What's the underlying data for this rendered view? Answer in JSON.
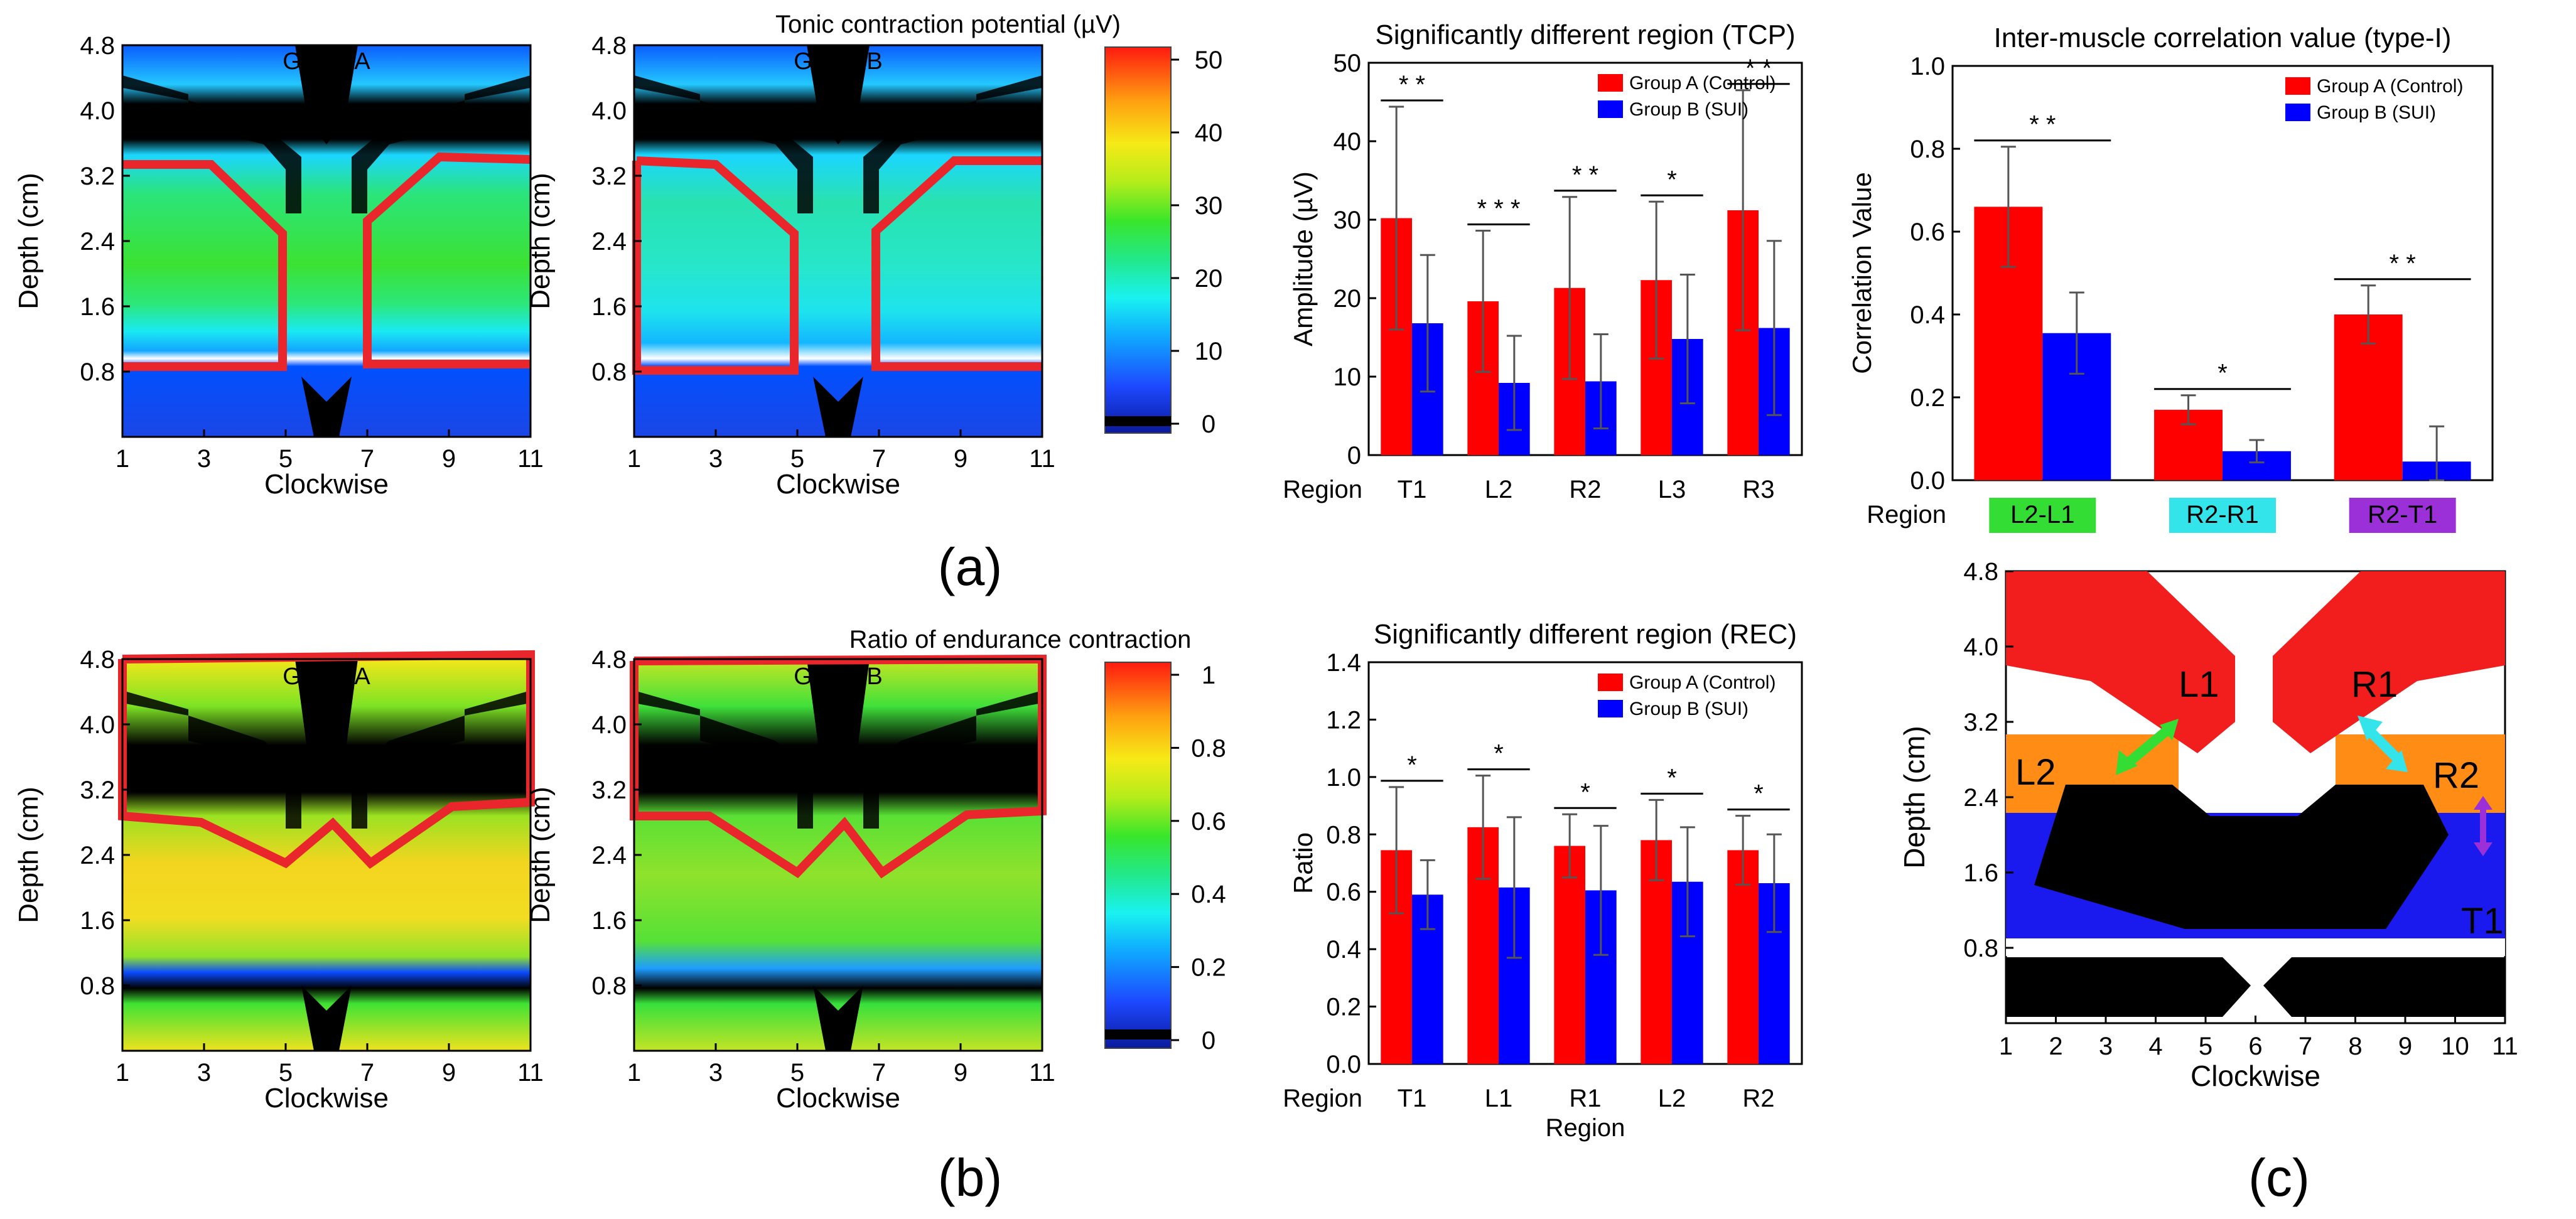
{
  "figure": {
    "panel_labels": {
      "a": "(a)",
      "b": "(b)",
      "c": "(c)"
    },
    "contour_axes": {
      "xlabel": "Clockwise",
      "ylabel": "Depth (cm)",
      "xticks": [
        "1",
        "3",
        "5",
        "7",
        "9",
        "11"
      ],
      "yticks": [
        "0.8",
        "1.6",
        "2.4",
        "3.2",
        "4.0",
        "4.8"
      ]
    },
    "groups": {
      "A": "Group A",
      "B": "Group B"
    },
    "colorbar_a": {
      "title": "Tonic contraction potential (µV)",
      "ticks": [
        "50",
        "40",
        "30",
        "20",
        "10",
        "0"
      ]
    },
    "colorbar_b": {
      "title": "Ratio of endurance contraction",
      "ticks": [
        "1",
        "0.8",
        "0.6",
        "0.4",
        "0.2",
        "0"
      ]
    },
    "colors": {
      "control": "#ff0000",
      "sui": "#0000ff",
      "highlight": "#e8262b"
    }
  },
  "chart_data": [
    {
      "type": "bar",
      "title": "Significantly different region (TCP)",
      "xlabel": "Region",
      "ylabel": "Amplitude (µV)",
      "ylim": [
        0,
        50
      ],
      "yticks": [
        "0",
        "10",
        "20",
        "30",
        "40",
        "50"
      ],
      "categories": [
        "T1",
        "L2",
        "R2",
        "L3",
        "R3"
      ],
      "series": [
        {
          "name": "Group A (Control)",
          "values": [
            30.2,
            19.6,
            21.3,
            22.3,
            31.2
          ],
          "errors": [
            14.2,
            9.0,
            11.6,
            10.0,
            15.3
          ]
        },
        {
          "name": "Group B (SUI)",
          "values": [
            16.8,
            9.2,
            9.4,
            14.8,
            16.2
          ],
          "errors": [
            8.7,
            6.0,
            6.0,
            8.2,
            11.1
          ]
        }
      ],
      "significance": [
        "* *",
        "* * *",
        "* *",
        "*",
        "* *"
      ]
    },
    {
      "type": "bar",
      "title": "Inter-muscle correlation value (type-I)",
      "xlabel": "Region",
      "ylabel": "Correlation Value",
      "ylim": [
        0,
        1.0
      ],
      "yticks": [
        "0.0",
        "0.2",
        "0.4",
        "0.6",
        "0.8",
        "1.0"
      ],
      "categories": [
        "L2-L1",
        "R2-R1",
        "R2-T1"
      ],
      "category_colors": [
        "#33dd33",
        "#33e5ea",
        "#9b30d8"
      ],
      "series": [
        {
          "name": "Group A (Control)",
          "values": [
            0.66,
            0.17,
            0.4
          ],
          "errors": [
            0.145,
            0.035,
            0.07
          ]
        },
        {
          "name": "Group B (SUI)",
          "values": [
            0.355,
            0.07,
            0.045
          ],
          "errors": [
            0.098,
            0.027,
            0.085
          ]
        }
      ],
      "significance": [
        "* *",
        "*",
        "*  *"
      ]
    },
    {
      "type": "bar",
      "title": "Significantly different region (REC)",
      "xlabel": "Region",
      "ylabel": "Ratio",
      "ylim": [
        0,
        1.4
      ],
      "yticks": [
        "0.0",
        "0.2",
        "0.4",
        "0.6",
        "0.8",
        "1.0",
        "1.2",
        "1.4"
      ],
      "categories": [
        "T1",
        "L1",
        "R1",
        "L2",
        "R2"
      ],
      "series": [
        {
          "name": "Group A (Control)",
          "values": [
            0.745,
            0.825,
            0.76,
            0.78,
            0.745
          ],
          "errors": [
            0.22,
            0.18,
            0.11,
            0.14,
            0.12
          ]
        },
        {
          "name": "Group B (SUI)",
          "values": [
            0.59,
            0.615,
            0.605,
            0.635,
            0.63
          ],
          "errors": [
            0.12,
            0.245,
            0.225,
            0.19,
            0.17
          ]
        }
      ],
      "significance": [
        "*",
        "*",
        "*",
        "*",
        "*"
      ],
      "axis_title_below": "Region"
    },
    {
      "type": "diagram",
      "xlabel": "Clockwise",
      "ylabel": "Depth (cm)",
      "xticks": [
        "1",
        "2",
        "3",
        "4",
        "5",
        "6",
        "7",
        "8",
        "9",
        "10",
        "11"
      ],
      "yticks": [
        "0.8",
        "1.6",
        "2.4",
        "3.2",
        "4.0",
        "4.8"
      ],
      "regions": [
        "L1",
        "R1",
        "L2",
        "R2",
        "T1"
      ]
    }
  ]
}
